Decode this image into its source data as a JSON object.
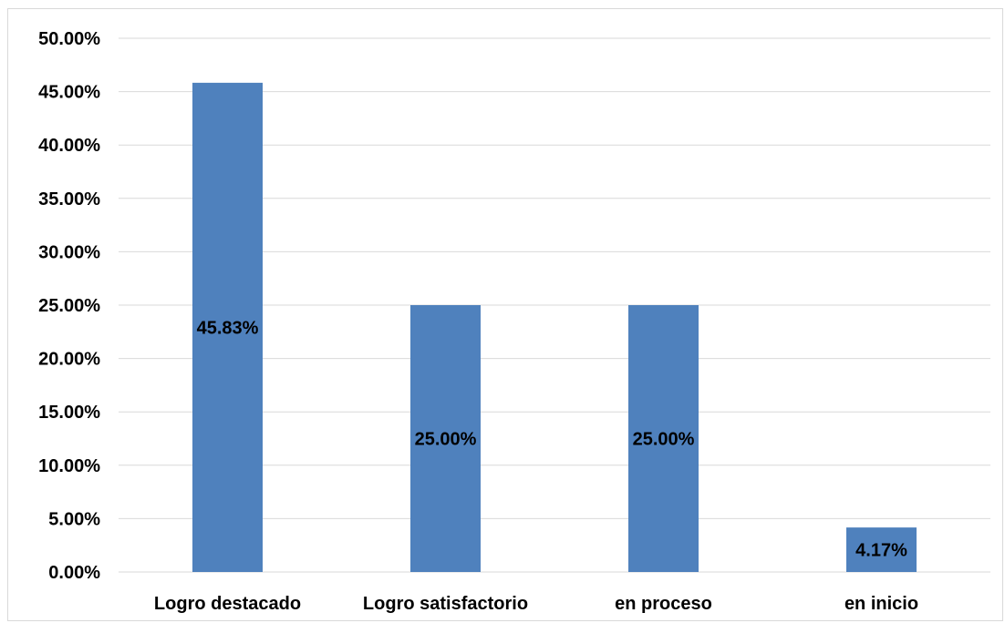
{
  "chart_data": {
    "type": "bar",
    "categories": [
      "Logro destacado",
      "Logro satisfactorio",
      "en proceso",
      "en inicio"
    ],
    "values": [
      45.83,
      25.0,
      25.0,
      4.17
    ],
    "data_labels": [
      "45.83%",
      "25.00%",
      "25.00%",
      "4.17%"
    ],
    "ylim": [
      0,
      50
    ],
    "y_ticks": [
      0,
      5,
      10,
      15,
      20,
      25,
      30,
      35,
      40,
      45,
      50
    ],
    "y_tick_labels": [
      "0.00%",
      "5.00%",
      "10.00%",
      "15.00%",
      "20.00%",
      "25.00%",
      "30.00%",
      "35.00%",
      "40.00%",
      "45.00%",
      "50.00%"
    ],
    "grid": true,
    "legend": "none",
    "bar_color": "#4f81bd",
    "title": "",
    "xlabel": "",
    "ylabel": ""
  }
}
